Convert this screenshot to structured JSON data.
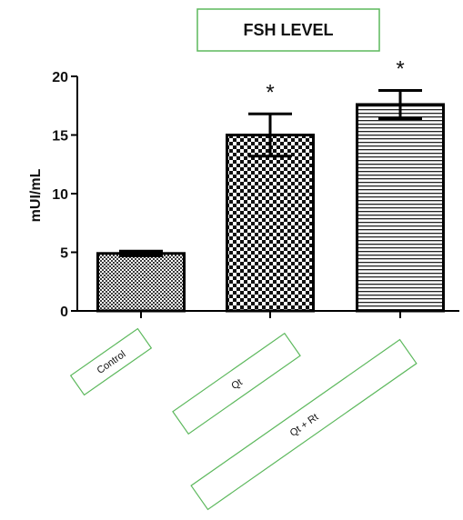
{
  "chart_data": {
    "type": "bar",
    "title": "FSH LEVEL",
    "xlabel": "",
    "ylabel": "mUI/mL",
    "categories": [
      "Control",
      "Qt",
      "Qt + Rt"
    ],
    "values": [
      4.9,
      15.0,
      17.6
    ],
    "error": [
      0.2,
      1.8,
      1.2
    ],
    "significance": [
      "",
      "*",
      "*"
    ],
    "ylim": [
      0,
      20
    ],
    "yticks": [
      0,
      5,
      10,
      15,
      20
    ],
    "ytick_labels": [
      "0",
      "5",
      "10",
      "15",
      "20"
    ],
    "grid": false,
    "legend": "none",
    "colors": {
      "title_box_border": "#5cb85c",
      "label_box_border": "#5cb85c",
      "bar_edge": "#000000"
    }
  }
}
